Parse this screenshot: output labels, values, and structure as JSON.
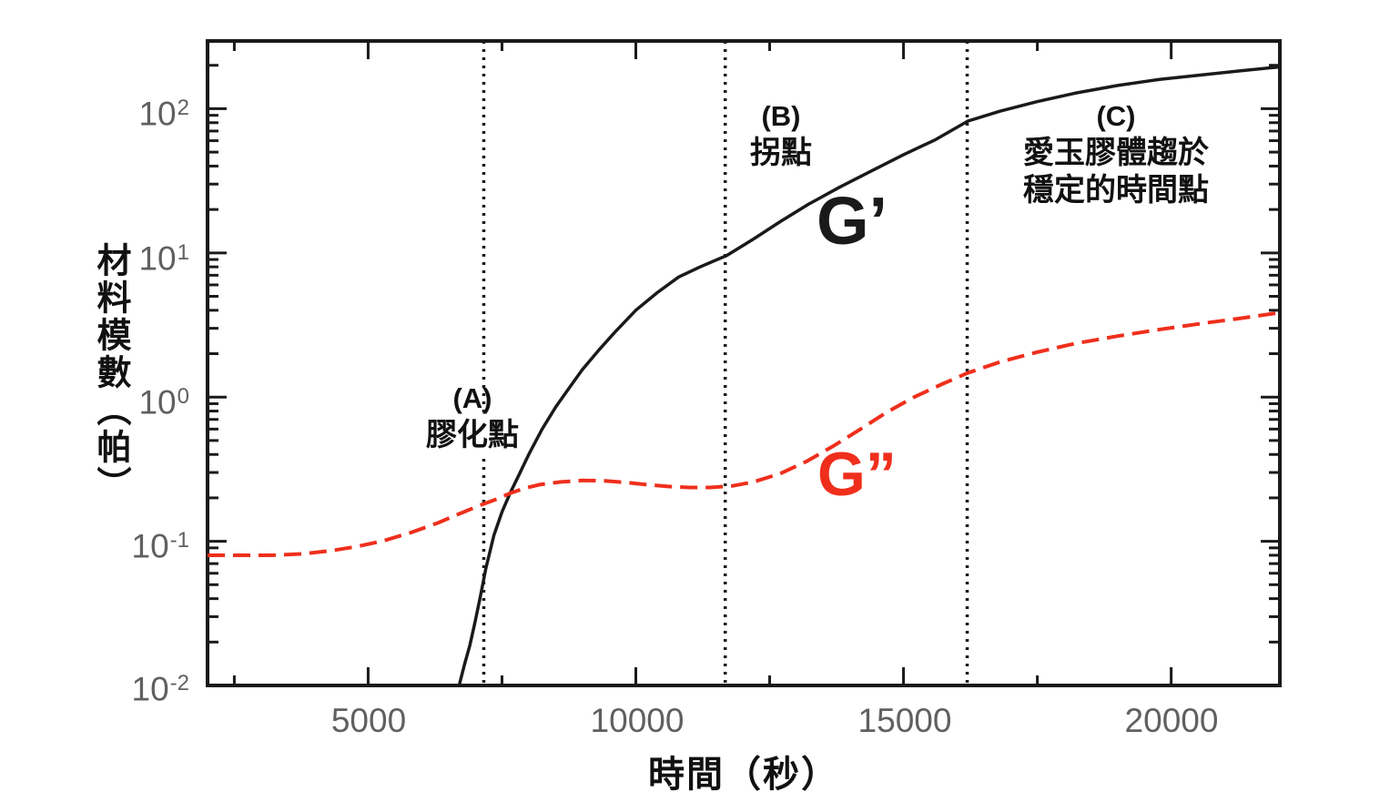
{
  "figure": {
    "background": "#ffffff",
    "axis_color": "#1a1a1a",
    "tick_label_color": "#606060"
  },
  "chart_data": {
    "type": "line",
    "title": "",
    "xlabel": "時間（秒）",
    "ylabel": "材料模數（帕）",
    "x_scale": "linear",
    "y_scale": "log",
    "xlim": [
      2000,
      22030
    ],
    "ylim": [
      0.01,
      295
    ],
    "grid": false,
    "legend_position": "inline-labels",
    "x_major_ticks": [
      5000,
      10000,
      15000,
      20000
    ],
    "x_minor_ticks": [
      2500,
      7500,
      12500,
      17500
    ],
    "x_tick_labels": [
      "5000",
      "10000",
      "15000",
      "20000"
    ],
    "y_major_ticks": [
      0.01,
      0.1,
      1,
      10,
      100
    ],
    "y_tick_labels": [
      {
        "base": "10",
        "exp": "2",
        "value": 100
      },
      {
        "base": "10",
        "exp": "1",
        "value": 10
      },
      {
        "base": "10",
        "exp": "0",
        "value": 1
      },
      {
        "base": "10",
        "exp": "-1",
        "value": 0.1
      },
      {
        "base": "10",
        "exp": "-2",
        "value": 0.01
      }
    ],
    "series": [
      {
        "name": "G’",
        "id": "g-prime-curve",
        "color": "#1a1a1a",
        "style": "solid",
        "points": [
          [
            6700,
            0.01
          ],
          [
            6800,
            0.014
          ],
          [
            6900,
            0.019
          ],
          [
            7000,
            0.028
          ],
          [
            7100,
            0.042
          ],
          [
            7200,
            0.065
          ],
          [
            7350,
            0.11
          ],
          [
            7500,
            0.16
          ],
          [
            7650,
            0.215
          ],
          [
            7800,
            0.28
          ],
          [
            8000,
            0.4
          ],
          [
            8250,
            0.6
          ],
          [
            8500,
            0.85
          ],
          [
            8750,
            1.15
          ],
          [
            9000,
            1.55
          ],
          [
            9300,
            2.1
          ],
          [
            9600,
            2.8
          ],
          [
            10000,
            4.0
          ],
          [
            10400,
            5.3
          ],
          [
            10800,
            6.8
          ],
          [
            11200,
            8.0
          ],
          [
            11700,
            9.6
          ],
          [
            12200,
            12.5
          ],
          [
            12700,
            16.5
          ],
          [
            13200,
            21.5
          ],
          [
            13800,
            28.5
          ],
          [
            14400,
            37
          ],
          [
            15000,
            48
          ],
          [
            15600,
            61
          ],
          [
            16200,
            82
          ],
          [
            16800,
            96
          ],
          [
            17500,
            112
          ],
          [
            18200,
            128
          ],
          [
            19000,
            145
          ],
          [
            19800,
            160
          ],
          [
            20600,
            172
          ],
          [
            21300,
            183
          ],
          [
            22030,
            195
          ]
        ]
      },
      {
        "name": "G”",
        "id": "g-double-prime-curve",
        "color": "#ef2f1c",
        "style": "dashed",
        "points": [
          [
            2000,
            0.08
          ],
          [
            2600,
            0.08
          ],
          [
            3200,
            0.08
          ],
          [
            3800,
            0.082
          ],
          [
            4300,
            0.086
          ],
          [
            4800,
            0.092
          ],
          [
            5300,
            0.101
          ],
          [
            5800,
            0.115
          ],
          [
            6300,
            0.134
          ],
          [
            6700,
            0.155
          ],
          [
            7100,
            0.178
          ],
          [
            7400,
            0.196
          ],
          [
            7650,
            0.215
          ],
          [
            7900,
            0.232
          ],
          [
            8200,
            0.247
          ],
          [
            8600,
            0.258
          ],
          [
            9000,
            0.264
          ],
          [
            9400,
            0.263
          ],
          [
            9800,
            0.256
          ],
          [
            10200,
            0.247
          ],
          [
            10600,
            0.24
          ],
          [
            11000,
            0.236
          ],
          [
            11400,
            0.236
          ],
          [
            11800,
            0.242
          ],
          [
            12200,
            0.258
          ],
          [
            12700,
            0.295
          ],
          [
            13200,
            0.36
          ],
          [
            13700,
            0.46
          ],
          [
            14200,
            0.6
          ],
          [
            14700,
            0.79
          ],
          [
            15200,
            1.0
          ],
          [
            15700,
            1.22
          ],
          [
            16200,
            1.47
          ],
          [
            16800,
            1.75
          ],
          [
            17500,
            2.05
          ],
          [
            18200,
            2.35
          ],
          [
            19000,
            2.65
          ],
          [
            19800,
            2.95
          ],
          [
            20600,
            3.25
          ],
          [
            21300,
            3.52
          ],
          [
            22030,
            3.85
          ]
        ]
      }
    ],
    "series_labels": {
      "g_prime": "G’",
      "g_double_prime": "G”"
    },
    "annotations": [
      {
        "id": "A",
        "t": 7160,
        "tag": "(A)",
        "text": "膠化點"
      },
      {
        "id": "B",
        "t": 11670,
        "tag": "(B)",
        "text": "拐點"
      },
      {
        "id": "C",
        "t": 16190,
        "tag": "(C)",
        "text_line1": "愛玉膠體趨於",
        "text_line2": "穩定的時間點"
      }
    ]
  }
}
